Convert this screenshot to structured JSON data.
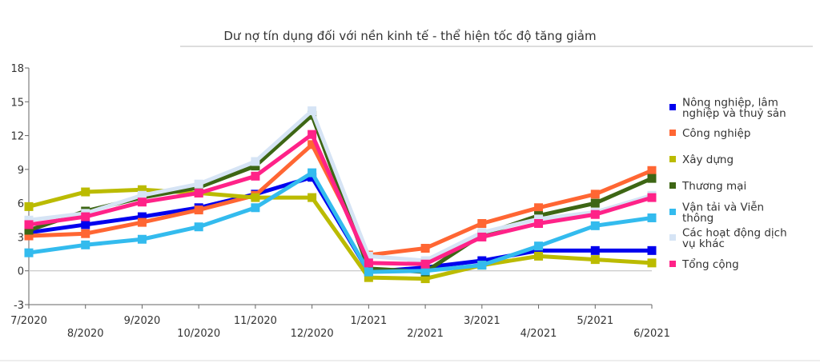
{
  "chart_data": {
    "type": "line",
    "title": "Dư nợ tín dụng đối với nền kinh tế - thể hiện tốc độ tăng giảm",
    "xlabel": "",
    "ylabel": "",
    "categories": [
      "7/2020",
      "8/2020",
      "9/2020",
      "10/2020",
      "11/2020",
      "12/2020",
      "1/2021",
      "2/2021",
      "3/2021",
      "4/2021",
      "5/2021",
      "6/2021"
    ],
    "ylim": [
      -3,
      18
    ],
    "yticks": [
      18,
      15,
      12,
      9,
      6,
      3,
      0,
      -3
    ],
    "grid": false,
    "legend_position": "right",
    "series": [
      {
        "name": "Nông nghiệp, lâm nghiệp và thuỷ sản",
        "name_lines": [
          "Nông nghiệp, lâm",
          "nghiệp và thuỷ sản"
        ],
        "color": "#0000ee",
        "values": [
          3.4,
          4.1,
          4.8,
          5.6,
          6.8,
          8.3,
          -0.1,
          0.3,
          0.9,
          1.8,
          1.8,
          1.8
        ]
      },
      {
        "name": "Công nghiệp",
        "name_lines": [
          "Công nghiệp"
        ],
        "color": "#ff6633",
        "values": [
          3.1,
          3.3,
          4.3,
          5.4,
          6.7,
          11.2,
          1.4,
          2.0,
          4.2,
          5.6,
          6.8,
          8.9
        ]
      },
      {
        "name": "Xây dựng",
        "name_lines": [
          "Xây dựng"
        ],
        "color": "#bbbb00",
        "values": [
          5.7,
          7.0,
          7.2,
          6.9,
          6.5,
          6.5,
          -0.6,
          -0.7,
          0.5,
          1.3,
          1.0,
          0.7
        ]
      },
      {
        "name": "Thương mại",
        "name_lines": [
          "Thương mại"
        ],
        "color": "#3d6614",
        "values": [
          3.6,
          5.3,
          6.5,
          7.4,
          9.3,
          13.8,
          0.2,
          -0.1,
          3.2,
          4.9,
          6.0,
          8.2
        ]
      },
      {
        "name": "Vận tải và Viễn thông",
        "name_lines": [
          "Vận tải và Viễn",
          "thông"
        ],
        "color": "#33bbee",
        "values": [
          1.6,
          2.3,
          2.8,
          3.9,
          5.6,
          8.7,
          -0.1,
          0.0,
          0.5,
          2.2,
          4.0,
          4.7
        ]
      },
      {
        "name": "Các hoạt động dịch vụ khác",
        "name_lines": [
          "Các hoạt động dịch",
          "vụ khác"
        ],
        "color": "#d6e4f5",
        "values": [
          4.5,
          5.1,
          6.7,
          7.7,
          9.7,
          14.2,
          1.3,
          0.9,
          3.4,
          4.6,
          5.2,
          6.7
        ]
      },
      {
        "name": "Tổng cộng",
        "name_lines": [
          "Tổng cộng"
        ],
        "color": "#ff2288",
        "values": [
          4.1,
          4.8,
          6.1,
          6.9,
          8.4,
          12.1,
          0.7,
          0.6,
          3.0,
          4.2,
          5.0,
          6.5
        ]
      }
    ]
  }
}
